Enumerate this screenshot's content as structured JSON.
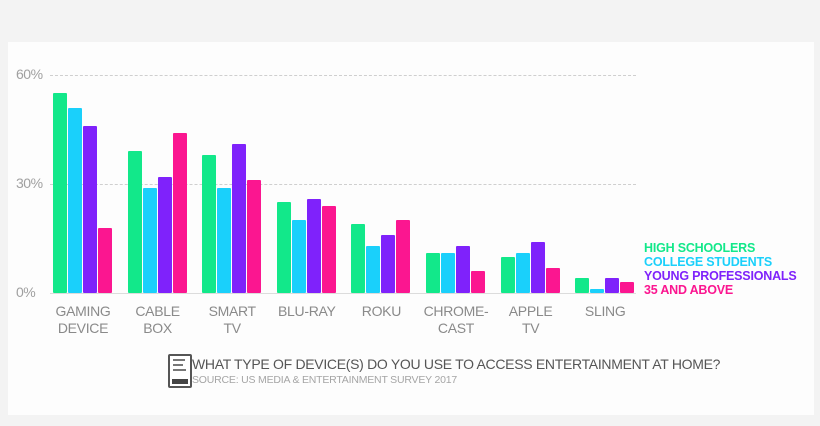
{
  "chart_data": {
    "type": "bar",
    "title": "WHAT TYPE OF DEVICE(S) DO YOU USE TO ACCESS ENTERTAINMENT AT HOME?",
    "subtitle": "SOURCE: US MEDIA & ENTERTAINMENT SURVEY 2017",
    "xlabel": "",
    "ylabel": "",
    "ylim": [
      0,
      60
    ],
    "yticks": [
      "0%",
      "30%",
      "60%"
    ],
    "grid": true,
    "legend_position": "right",
    "categories": [
      [
        "GAMING",
        "DEVICE"
      ],
      [
        "CABLE",
        "BOX"
      ],
      [
        "SMART",
        "TV"
      ],
      [
        "BLU-RAY"
      ],
      [
        "ROKU"
      ],
      [
        "CHROME-",
        "CAST"
      ],
      [
        "APPLE",
        "TV"
      ],
      [
        "SLING"
      ]
    ],
    "series": [
      {
        "name": "HIGH SCHOOLERS",
        "color": "#12e88a",
        "values": [
          55,
          39,
          38,
          25,
          19,
          11,
          10,
          4
        ]
      },
      {
        "name": "COLLEGE STUDENTS",
        "color": "#1ad0fb",
        "values": [
          51,
          29,
          29,
          20,
          13,
          11,
          11,
          1
        ]
      },
      {
        "name": "YOUNG PROFESSIONALS",
        "color": "#7f22fb",
        "values": [
          46,
          32,
          41,
          26,
          16,
          13,
          14,
          4
        ]
      },
      {
        "name": "35 AND ABOVE",
        "color": "#fb1690",
        "values": [
          18,
          44,
          31,
          24,
          20,
          6,
          7,
          3
        ]
      }
    ]
  },
  "footer": {
    "icon": "survey-report-icon",
    "title": "WHAT TYPE OF DEVICE(S) DO YOU USE TO ACCESS ENTERTAINMENT AT HOME?",
    "source": "SOURCE: US MEDIA & ENTERTAINMENT SURVEY 2017"
  }
}
